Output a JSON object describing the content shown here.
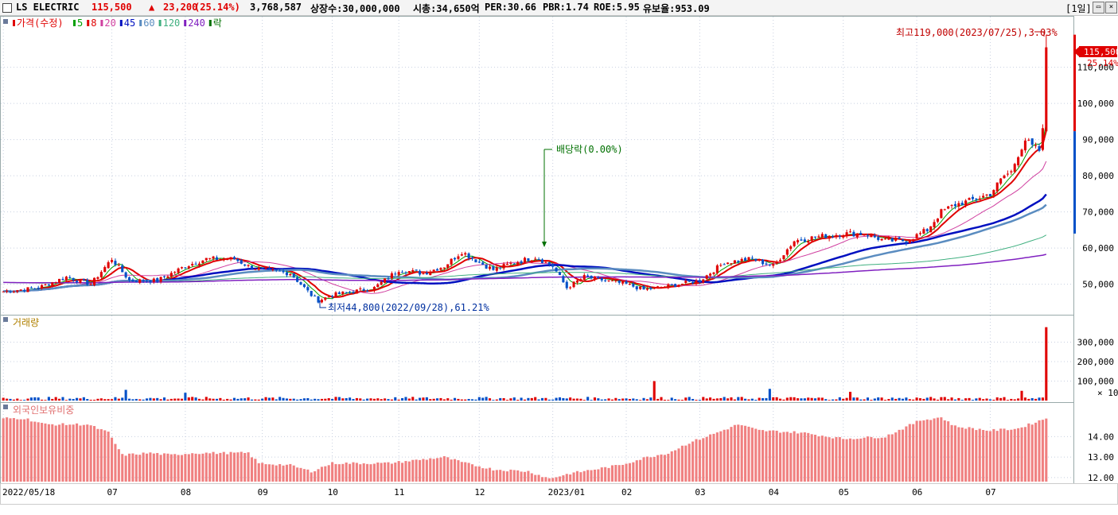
{
  "header": {
    "name": "LS ELECTRIC",
    "price": "115,500",
    "change_arrow": "▲",
    "change": "23,200",
    "change_pct": "(25.14%)",
    "volume": "3,768,587",
    "listed": "상장수:30,000,000",
    "mcap": "시총:34,650억",
    "per": "PER:30.66",
    "pbr": "PBR:1.74",
    "roe": "ROE:5.95",
    "float": "유보율:953.09",
    "period": "[1일]"
  },
  "colors": {
    "up": "#e00000",
    "down": "#0050c8",
    "ma5": "#00a000",
    "ma8": "#e00000",
    "ma20": "#d040a0",
    "ma45": "#0010c0",
    "ma60": "#5a8cc0",
    "ma120": "#40b080",
    "ma240": "#8020c0",
    "foreign": "#f08080",
    "annotation": "#c00000",
    "dividend": "#007000"
  },
  "legends": {
    "price": [
      {
        "label": "가격(수정)",
        "color": "#e00000"
      },
      {
        "label": "5",
        "color": "#00a000"
      },
      {
        "label": "8",
        "color": "#e00000"
      },
      {
        "label": "20",
        "color": "#d040a0"
      },
      {
        "label": "45",
        "color": "#0010c0"
      },
      {
        "label": "60",
        "color": "#5a8cc0"
      },
      {
        "label": "120",
        "color": "#40b080"
      },
      {
        "label": "240",
        "color": "#8020c0"
      },
      {
        "label": "락",
        "color": "#007000"
      }
    ],
    "volume": "거래량",
    "foreign": "외국인보유비중"
  },
  "annotations": {
    "high": "최고119,000(2023/07/25),3.03%",
    "low": "최저44,800(2022/09/28),61.21%",
    "dividend": "배당락(0.00%)",
    "price_tag": "115,500",
    "pct_tag": "25.14%",
    "volume_unit": "× 10"
  },
  "chart_data": [
    {
      "type": "candlestick",
      "title": "가격(수정)",
      "ylim": [
        42000,
        122000
      ],
      "y_ticks": [
        50000,
        60000,
        70000,
        80000,
        90000,
        100000,
        110000
      ],
      "y_tick_labels": [
        "50,000",
        "60,000",
        "70,000",
        "80,000",
        "90,000",
        "100,000",
        "110,000"
      ],
      "x_tick_labels": [
        "2022/05/18",
        "07",
        "08",
        "09",
        "10",
        "11",
        "12",
        "2023/01",
        "02",
        "03",
        "04",
        "05",
        "06",
        "07"
      ],
      "x_tick_index": [
        0,
        31,
        52,
        74,
        94,
        113,
        136,
        157,
        178,
        199,
        220,
        240,
        261,
        282
      ],
      "close_anchors": [
        [
          0,
          48000
        ],
        [
          10,
          49000
        ],
        [
          18,
          52000
        ],
        [
          25,
          50000
        ],
        [
          31,
          57000
        ],
        [
          36,
          51000
        ],
        [
          44,
          51000
        ],
        [
          52,
          55000
        ],
        [
          58,
          57000
        ],
        [
          66,
          57000
        ],
        [
          70,
          55000
        ],
        [
          74,
          54000
        ],
        [
          82,
          53000
        ],
        [
          88,
          47000
        ],
        [
          90,
          45500
        ],
        [
          94,
          47000
        ],
        [
          100,
          48000
        ],
        [
          106,
          49000
        ],
        [
          113,
          54000
        ],
        [
          120,
          53000
        ],
        [
          126,
          55000
        ],
        [
          131,
          59000
        ],
        [
          136,
          56000
        ],
        [
          140,
          54000
        ],
        [
          146,
          56000
        ],
        [
          152,
          57500
        ],
        [
          157,
          55000
        ],
        [
          161,
          49000
        ],
        [
          166,
          52000
        ],
        [
          172,
          51000
        ],
        [
          178,
          50000
        ],
        [
          183,
          48500
        ],
        [
          190,
          49500
        ],
        [
          199,
          51000
        ],
        [
          206,
          56000
        ],
        [
          214,
          57000
        ],
        [
          220,
          55000
        ],
        [
          226,
          62000
        ],
        [
          232,
          63000
        ],
        [
          240,
          64000
        ],
        [
          246,
          64000
        ],
        [
          252,
          62000
        ],
        [
          258,
          62000
        ],
        [
          264,
          65000
        ],
        [
          268,
          70000
        ],
        [
          272,
          72000
        ],
        [
          276,
          73000
        ],
        [
          282,
          75000
        ],
        [
          286,
          80000
        ],
        [
          288,
          81000
        ],
        [
          290,
          86000
        ],
        [
          292,
          90000
        ],
        [
          294,
          88000
        ],
        [
          296,
          87000
        ],
        [
          297,
          92300
        ],
        [
          298,
          115500
        ]
      ],
      "moving_averages": [
        {
          "name": "5",
          "period": 5
        },
        {
          "name": "8",
          "period": 8
        },
        {
          "name": "20",
          "period": 20
        },
        {
          "name": "45",
          "period": 45
        },
        {
          "name": "60",
          "period": 60
        },
        {
          "name": "120",
          "period": 120
        },
        {
          "name": "240",
          "period": 240
        }
      ],
      "last_close": 115500,
      "high": 119000,
      "high_date": "2023/07/25",
      "low": 44800,
      "low_date": "2022/09/28",
      "dividend_index": 157
    },
    {
      "type": "bar",
      "title": "거래량",
      "y_ticks": [
        100000,
        200000,
        300000
      ],
      "y_tick_labels": [
        "100,000",
        "200,000",
        "300,000"
      ],
      "ylim": [
        0,
        400000
      ],
      "unit": "× 10",
      "spikes": [
        [
          186,
          100000
        ],
        [
          219,
          60000
        ],
        [
          35,
          55000
        ],
        [
          298,
          376859
        ],
        [
          291,
          50000
        ],
        [
          242,
          45000
        ],
        [
          52,
          40000
        ]
      ]
    },
    {
      "type": "bar",
      "title": "외국인보유비중",
      "ylim": [
        11.8,
        15.3
      ],
      "y_ticks": [
        12.0,
        13.0,
        14.0
      ],
      "y_tick_labels": [
        "12.00",
        "13.00",
        "14.00"
      ],
      "anchors": [
        [
          0,
          14.9
        ],
        [
          6,
          14.9
        ],
        [
          12,
          14.6
        ],
        [
          24,
          14.6
        ],
        [
          30,
          14.2
        ],
        [
          34,
          13.1
        ],
        [
          42,
          13.2
        ],
        [
          48,
          13.1
        ],
        [
          54,
          13.2
        ],
        [
          60,
          13.2
        ],
        [
          70,
          13.2
        ],
        [
          73,
          12.7
        ],
        [
          82,
          12.6
        ],
        [
          88,
          12.3
        ],
        [
          94,
          12.7
        ],
        [
          110,
          12.7
        ],
        [
          126,
          13.0
        ],
        [
          132,
          12.7
        ],
        [
          140,
          12.4
        ],
        [
          150,
          12.3
        ],
        [
          156,
          11.95
        ],
        [
          162,
          12.2
        ],
        [
          176,
          12.6
        ],
        [
          184,
          13.0
        ],
        [
          190,
          13.2
        ],
        [
          196,
          13.7
        ],
        [
          204,
          14.2
        ],
        [
          210,
          14.6
        ],
        [
          216,
          14.3
        ],
        [
          228,
          14.2
        ],
        [
          240,
          13.9
        ],
        [
          252,
          14.0
        ],
        [
          262,
          14.8
        ],
        [
          268,
          14.95
        ],
        [
          272,
          14.5
        ],
        [
          282,
          14.3
        ],
        [
          290,
          14.4
        ],
        [
          298,
          14.9
        ]
      ]
    }
  ]
}
